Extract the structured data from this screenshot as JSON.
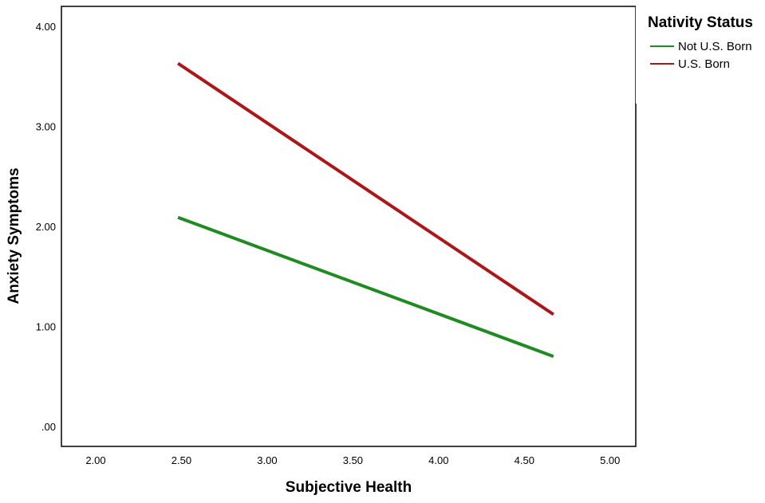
{
  "chart_data": {
    "type": "line",
    "xlabel": "Subjective Health",
    "ylabel": "Anxiety Symptoms",
    "xlim": [
      1.8,
      5.15
    ],
    "ylim": [
      -0.2,
      4.2
    ],
    "xticks": [
      "2.00",
      "2.50",
      "3.00",
      "3.50",
      "4.00",
      "4.50",
      "5.00"
    ],
    "xtick_values": [
      2.0,
      2.5,
      3.0,
      3.5,
      4.0,
      4.5,
      5.0
    ],
    "yticks": [
      ".00",
      "1.00",
      "2.00",
      "3.00",
      "4.00"
    ],
    "ytick_values": [
      0,
      1,
      2,
      3,
      4
    ],
    "grid": false,
    "legend": {
      "title": "Nativity Status",
      "position": "top-right outside"
    },
    "series": [
      {
        "name": "Not U.S. Born",
        "color": "#1e8c1e",
        "x": [
          2.48,
          4.67
        ],
        "y": [
          2.09,
          0.7
        ]
      },
      {
        "name": "U.S. Born",
        "color": "#b01414",
        "x": [
          2.48,
          4.67
        ],
        "y": [
          3.63,
          1.12
        ]
      }
    ]
  }
}
